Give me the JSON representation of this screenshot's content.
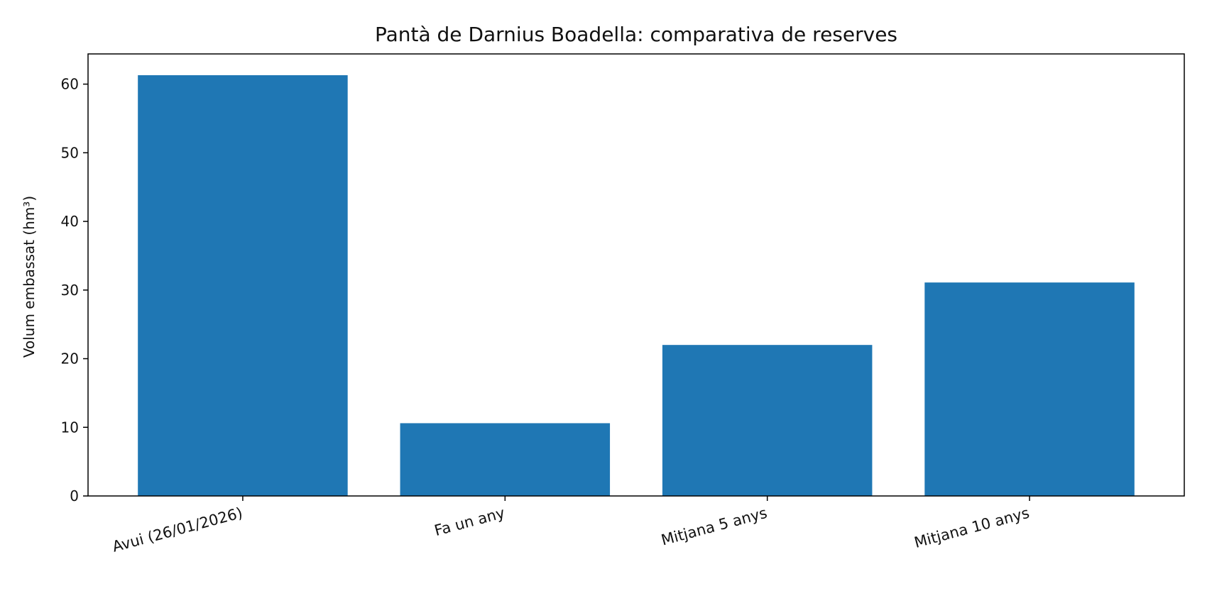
{
  "chart_data": {
    "type": "bar",
    "title": "Pantà de Darnius Boadella: comparativa de reserves",
    "xlabel": "",
    "ylabel": "Volum embassat (hm³)",
    "categories": [
      "Avui (26/01/2026)",
      "Fa un any",
      "Mitjana 5 anys",
      "Mitjana 10 anys"
    ],
    "values": [
      61.3,
      10.6,
      22.0,
      31.1
    ],
    "ylim": [
      0,
      64.4
    ],
    "yticks": [
      0,
      10,
      20,
      30,
      40,
      50,
      60
    ],
    "grid": false,
    "legend": "none",
    "bar_color": "#1f77b4"
  }
}
